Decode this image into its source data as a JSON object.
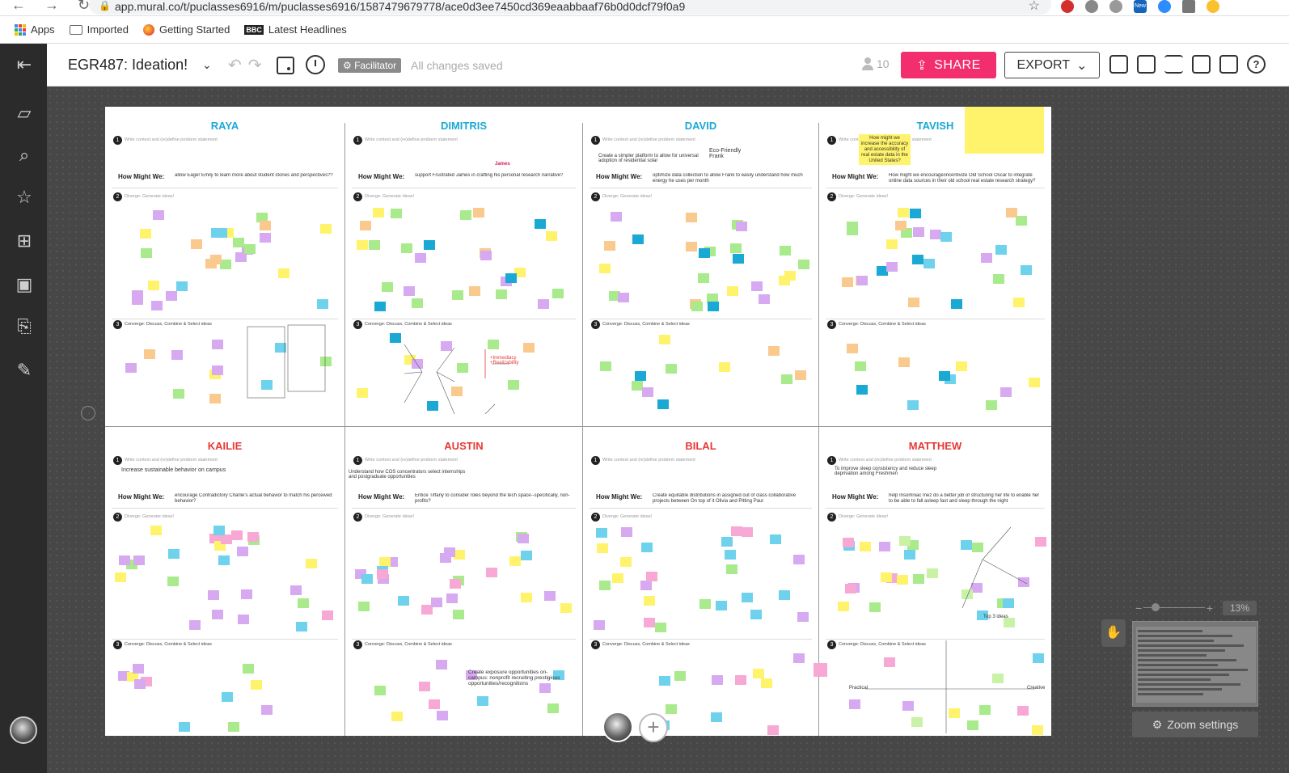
{
  "browser": {
    "url": "app.mural.co/t/puclasses6916/m/puclasses6916/1587479679778/ace0d3ee7450cd369eaabbaaf76b0d0dcf79f0a9",
    "ext_new_badge": "New"
  },
  "bookmarks": [
    {
      "label": "Apps",
      "icon": "apps-grid-icon"
    },
    {
      "label": "Imported",
      "icon": "folder-icon"
    },
    {
      "label": "Getting Started",
      "icon": "firefox-icon"
    },
    {
      "label": "Latest Headlines",
      "icon": "bbc-icon"
    }
  ],
  "toolbar": {
    "mural_title": "EGR487: Ideation!",
    "facilitator_label": "Facilitator",
    "save_status": "All changes saved",
    "user_count": "10",
    "share_label": "SHARE",
    "export_label": "EXPORT",
    "help_label": "?"
  },
  "board": {
    "people": [
      "RAYA",
      "DIMITRIS",
      "DAVID",
      "TAVISH",
      "KAILIE",
      "AUSTIN",
      "BILAL",
      "MATTHEW"
    ],
    "hmw_label": "How Might We:",
    "step1_label": "Write context and (re)define problem statement",
    "step2_label": "Diverge: Generate ideas!",
    "step3_label": "Converge: Discuss, Combine & Select ideas",
    "hmw_texts": [
      "allow Eager Emily to learn more about student stories and perspectives??",
      "support Frustrated James in crafting his personal research narrative?",
      "optimize data collection to allow Frank to easily understand how much energy he uses per month",
      "How might we encourage/incentivize Old School Oscar to integrate online data sources in their old school real estate research strategy?",
      "encourage Contradictory Charlie's actual behavior to match his perceived behavior?",
      "Entice Tiffany to consider roles beyond the tech space--specifically, non-profits?",
      "Create equitable distributions in assigned out of class collaborative projects between On top of it Olivia and Pitting Paul",
      "help Insomniac Inez do a better job of structuring her life to enable her to be able to fall asleep fast and sleep through the night"
    ],
    "goals": {
      "david": "Create a simpler platform to allow for universal adoption of residential solar",
      "david_persona": "Eco-Friendly Frank",
      "kailie": "Increase sustainable behavior on campus",
      "austin": "Understand how COS concentrators select internships and postgraduate opportunities",
      "matthew": "To improve sleep consistency and reduce sleep deprivation among Freshmen",
      "dimitris_persona": "James",
      "tavish_question": "How might we increase the accuracy and accessibility of real estate data in the United States?",
      "austin_exposure": "Create exposure opportunities on-campus: nonprofit recruiting prestigious opportunities/recognitions",
      "dimitris_axes": "+Immediacy +Realizability",
      "matthew_axis_left": "Practical",
      "matthew_axis_right": "Creative",
      "matthew_top": "Top 3 ideas"
    }
  },
  "zoom": {
    "percent": "13%",
    "settings_label": "Zoom settings"
  }
}
